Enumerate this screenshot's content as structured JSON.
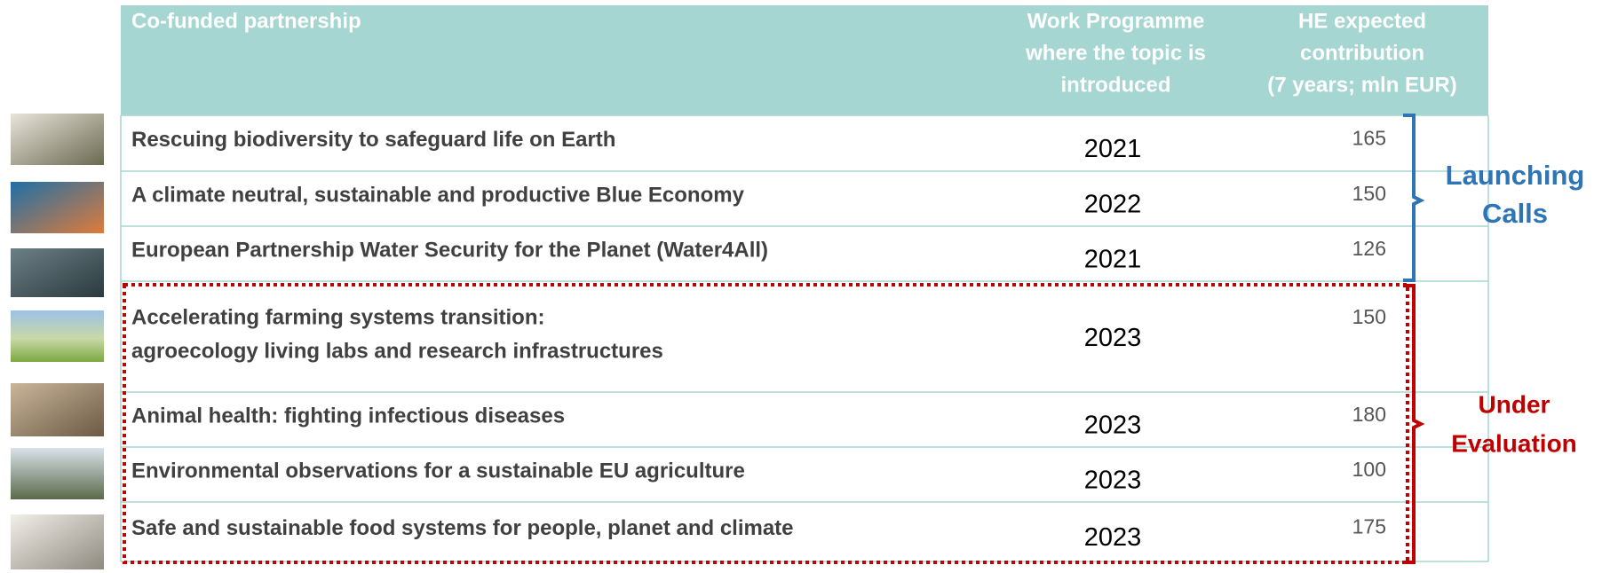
{
  "table": {
    "header": [
      [
        "Co-funded partnership"
      ],
      [
        "Work Programme",
        "where the topic is",
        "introduced"
      ],
      [
        "HE expected",
        "contribution",
        "(7 years; mln EUR)"
      ]
    ],
    "rows": [
      {
        "partnership": [
          "Rescuing biodiversity to safeguard life on Earth"
        ],
        "year": 2021,
        "contribution": 165
      },
      {
        "partnership": [
          "A climate neutral, sustainable and productive Blue Economy"
        ],
        "year": 2022,
        "contribution": 150
      },
      {
        "partnership": [
          "European Partnership Water Security for the Planet (Water4All)"
        ],
        "year": 2021,
        "contribution": 126
      },
      {
        "partnership": [
          "Accelerating farming systems transition:",
          "agroecology living labs and research infrastructures"
        ],
        "year": 2023,
        "contribution": 150
      },
      {
        "partnership": [
          "Animal health: fighting infectious diseases"
        ],
        "year": 2023,
        "contribution": 180
      },
      {
        "partnership": [
          "Environmental observations for a sustainable EU agriculture"
        ],
        "year": 2023,
        "contribution": 100
      },
      {
        "partnership": [
          "Safe and sustainable food systems for people, planet and climate"
        ],
        "year": 2023,
        "contribution": 175
      }
    ]
  },
  "groups": [
    {
      "label": [
        "Launching",
        "Calls"
      ],
      "color": "#2e75b6"
    },
    {
      "label": [
        "Under",
        "Evaluation"
      ],
      "color": "#c00000"
    }
  ]
}
